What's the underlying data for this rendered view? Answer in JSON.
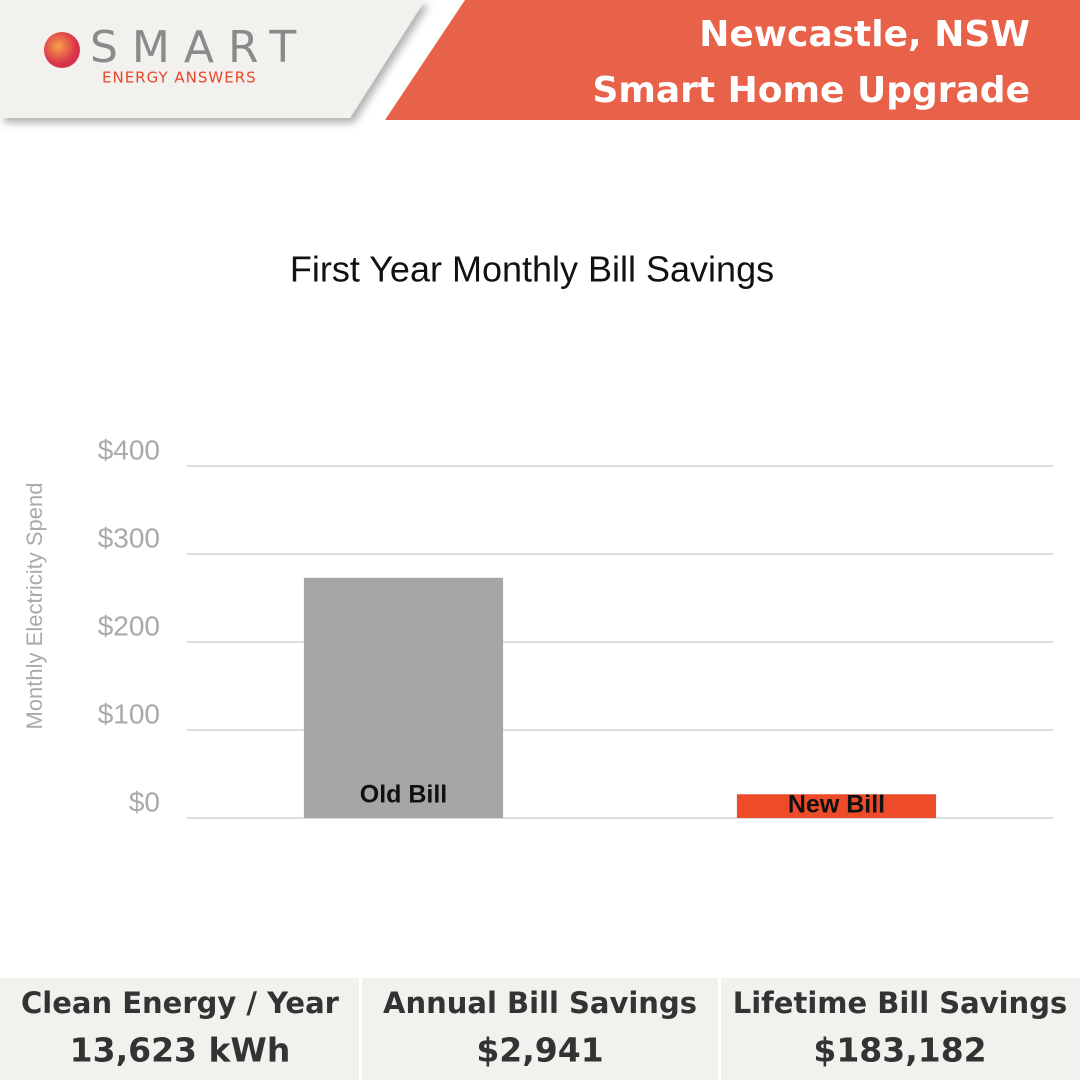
{
  "logo": {
    "name": "SMART",
    "tagline": "ENERGY ANSWERS"
  },
  "header": {
    "location": "Newcastle, NSW",
    "title": "Smart Home Upgrade"
  },
  "chart_data": {
    "type": "bar",
    "title": "First Year Monthly Bill Savings",
    "y_label": "Monthly Electricity Spend",
    "categories": [
      "Old Bill",
      "New Bill"
    ],
    "values": [
      273,
      27
    ],
    "colors": [
      "#a6a6a6",
      "#ee4b2b"
    ],
    "ylim": [
      0,
      400
    ],
    "yticks": [
      {
        "value": 0,
        "label": "$0"
      },
      {
        "value": 100,
        "label": "$100"
      },
      {
        "value": 200,
        "label": "$200"
      },
      {
        "value": 300,
        "label": "$300"
      },
      {
        "value": 400,
        "label": "$400"
      }
    ],
    "grid": true
  },
  "stats": [
    {
      "label": "Clean Energy / Year",
      "value": "13,623 kWh"
    },
    {
      "label": "Annual Bill Savings",
      "value": "$2,941"
    },
    {
      "label": "Lifetime Bill Savings",
      "value": "$183,182"
    }
  ]
}
